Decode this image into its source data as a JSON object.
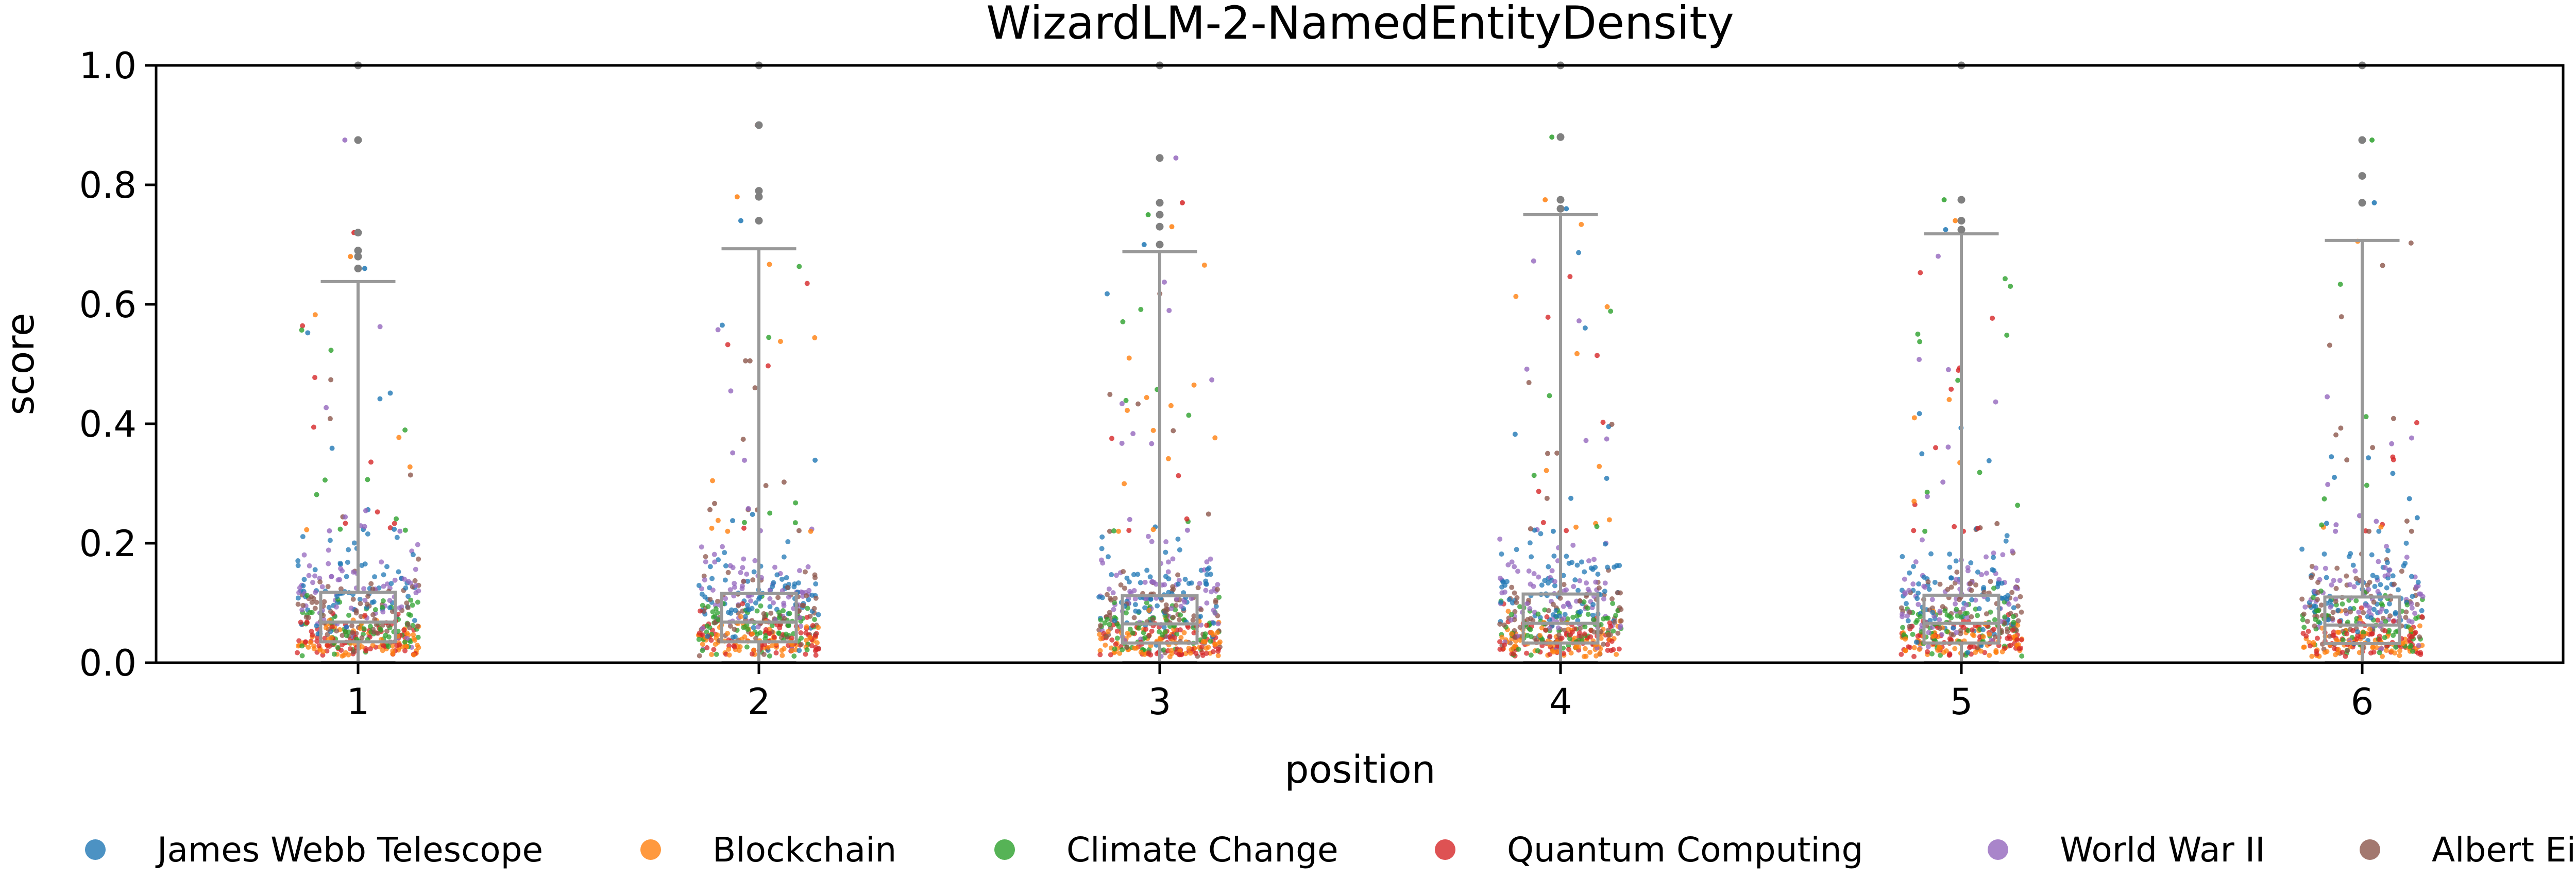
{
  "chart_data": {
    "type": "box-strip",
    "title": "WizardLM-2-NamedEntityDensity",
    "xlabel": "position",
    "ylabel": "score",
    "ylim": [
      0.0,
      1.0
    ],
    "yticks": [
      "0.0",
      "0.2",
      "0.4",
      "0.6",
      "0.8",
      "1.0"
    ],
    "categories": [
      "1",
      "2",
      "3",
      "4",
      "5",
      "6"
    ],
    "grid": false,
    "legend_position": "bottom",
    "box_color": "#999999",
    "boxes": [
      {
        "position": "1",
        "whisker_low": 0.0,
        "q1": 0.035,
        "median": 0.068,
        "q3": 0.118,
        "whisker_high": 0.638,
        "outliers": [
          0.66,
          0.68,
          0.69,
          0.72,
          0.875,
          1.0
        ]
      },
      {
        "position": "2",
        "whisker_low": 0.0,
        "q1": 0.035,
        "median": 0.068,
        "q3": 0.116,
        "whisker_high": 0.693,
        "outliers": [
          0.74,
          0.78,
          0.79,
          0.9,
          1.0
        ]
      },
      {
        "position": "3",
        "whisker_low": 0.0,
        "q1": 0.033,
        "median": 0.065,
        "q3": 0.112,
        "whisker_high": 0.688,
        "outliers": [
          0.7,
          0.73,
          0.75,
          0.77,
          0.845,
          1.0
        ]
      },
      {
        "position": "4",
        "whisker_low": 0.0,
        "q1": 0.033,
        "median": 0.066,
        "q3": 0.115,
        "whisker_high": 0.75,
        "outliers": [
          0.76,
          0.775,
          0.88,
          1.0
        ]
      },
      {
        "position": "5",
        "whisker_low": 0.0,
        "q1": 0.033,
        "median": 0.066,
        "q3": 0.113,
        "whisker_high": 0.718,
        "outliers": [
          0.725,
          0.74,
          0.775,
          1.0
        ]
      },
      {
        "position": "6",
        "whisker_low": 0.0,
        "q1": 0.032,
        "median": 0.063,
        "q3": 0.11,
        "whisker_high": 0.707,
        "outliers": [
          0.77,
          0.815,
          0.875,
          1.0
        ]
      }
    ],
    "series": [
      {
        "name": "James Webb Telescope",
        "color": "#1f77b4"
      },
      {
        "name": "Blockchain",
        "color": "#ff7f0e"
      },
      {
        "name": "Climate Change",
        "color": "#2ca02c"
      },
      {
        "name": "Quantum Computing",
        "color": "#d62728"
      },
      {
        "name": "World War II",
        "color": "#9467bd"
      },
      {
        "name": "Albert Einstein",
        "color": "#8c564b"
      }
    ]
  }
}
